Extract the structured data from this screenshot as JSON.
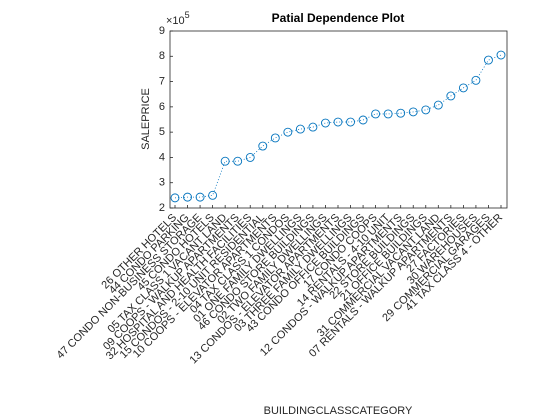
{
  "chart_data": {
    "type": "line",
    "title": "Patial Dependence Plot",
    "xlabel": "BUILDINGCLASSCATEGORY",
    "ylabel": "SALEPRICE",
    "y_multiplier": {
      "base": "×10",
      "exponent": "5"
    },
    "categories": [
      "26  OTHER HOTELS",
      "44  CONDO PARKING",
      "47  CONDO NON-BUSINESS STORAGE",
      "45  CONDO HOTELS",
      "05  TAX CLASS 1 VACANT LAND",
      "09  COOPS - WALKUP APARTMENTS",
      "32  HOSPITAL AND HEALTH FACILITIES",
      "15  CONDOS - 2-10 UNIT RESIDENTIAL",
      "10  COOPS - ELEVATOR APARTMENTS",
      "04  TAX CLASS 1 CONDOS",
      "01  ONE FAMILY DWELLINGS",
      "46  CONDO STORE BUILDINGS",
      "02  TWO FAMILY DWELLINGS",
      "13  CONDOS - ELEVATOR APARTMENTS",
      "03  THREE FAMILY DWELLINGS",
      "43  CONDO OFFICE BUILDINGS",
      "17  CONDO COOPS",
      "14  RENTALS - 4-10 UNIT",
      "12  CONDOS - WALKUP APARTMENTS",
      "22  STORE BUILDINGS",
      "21  OFFICE BUILDINGS",
      "31  COMMERCIAL VACANT LAND",
      "07  RENTALS - WALKUP APARTMENTS",
      "27  FACTORIES",
      "30  WAREHOUSES",
      "29  COMMERCIAL GARAGES",
      "41  TAX CLASS 4 - OTHER"
    ],
    "values": [
      2.4,
      2.43,
      2.43,
      2.5,
      3.85,
      3.85,
      4.0,
      4.45,
      4.77,
      5.0,
      5.12,
      5.2,
      5.36,
      5.4,
      5.4,
      5.48,
      5.72,
      5.72,
      5.75,
      5.8,
      5.88,
      6.07,
      6.43,
      6.75,
      7.05,
      7.85,
      8.05
    ],
    "color": "#0072BD",
    "ylim": [
      2,
      9
    ],
    "yticks": [
      2,
      3,
      4,
      5,
      6,
      7,
      8,
      9
    ]
  }
}
